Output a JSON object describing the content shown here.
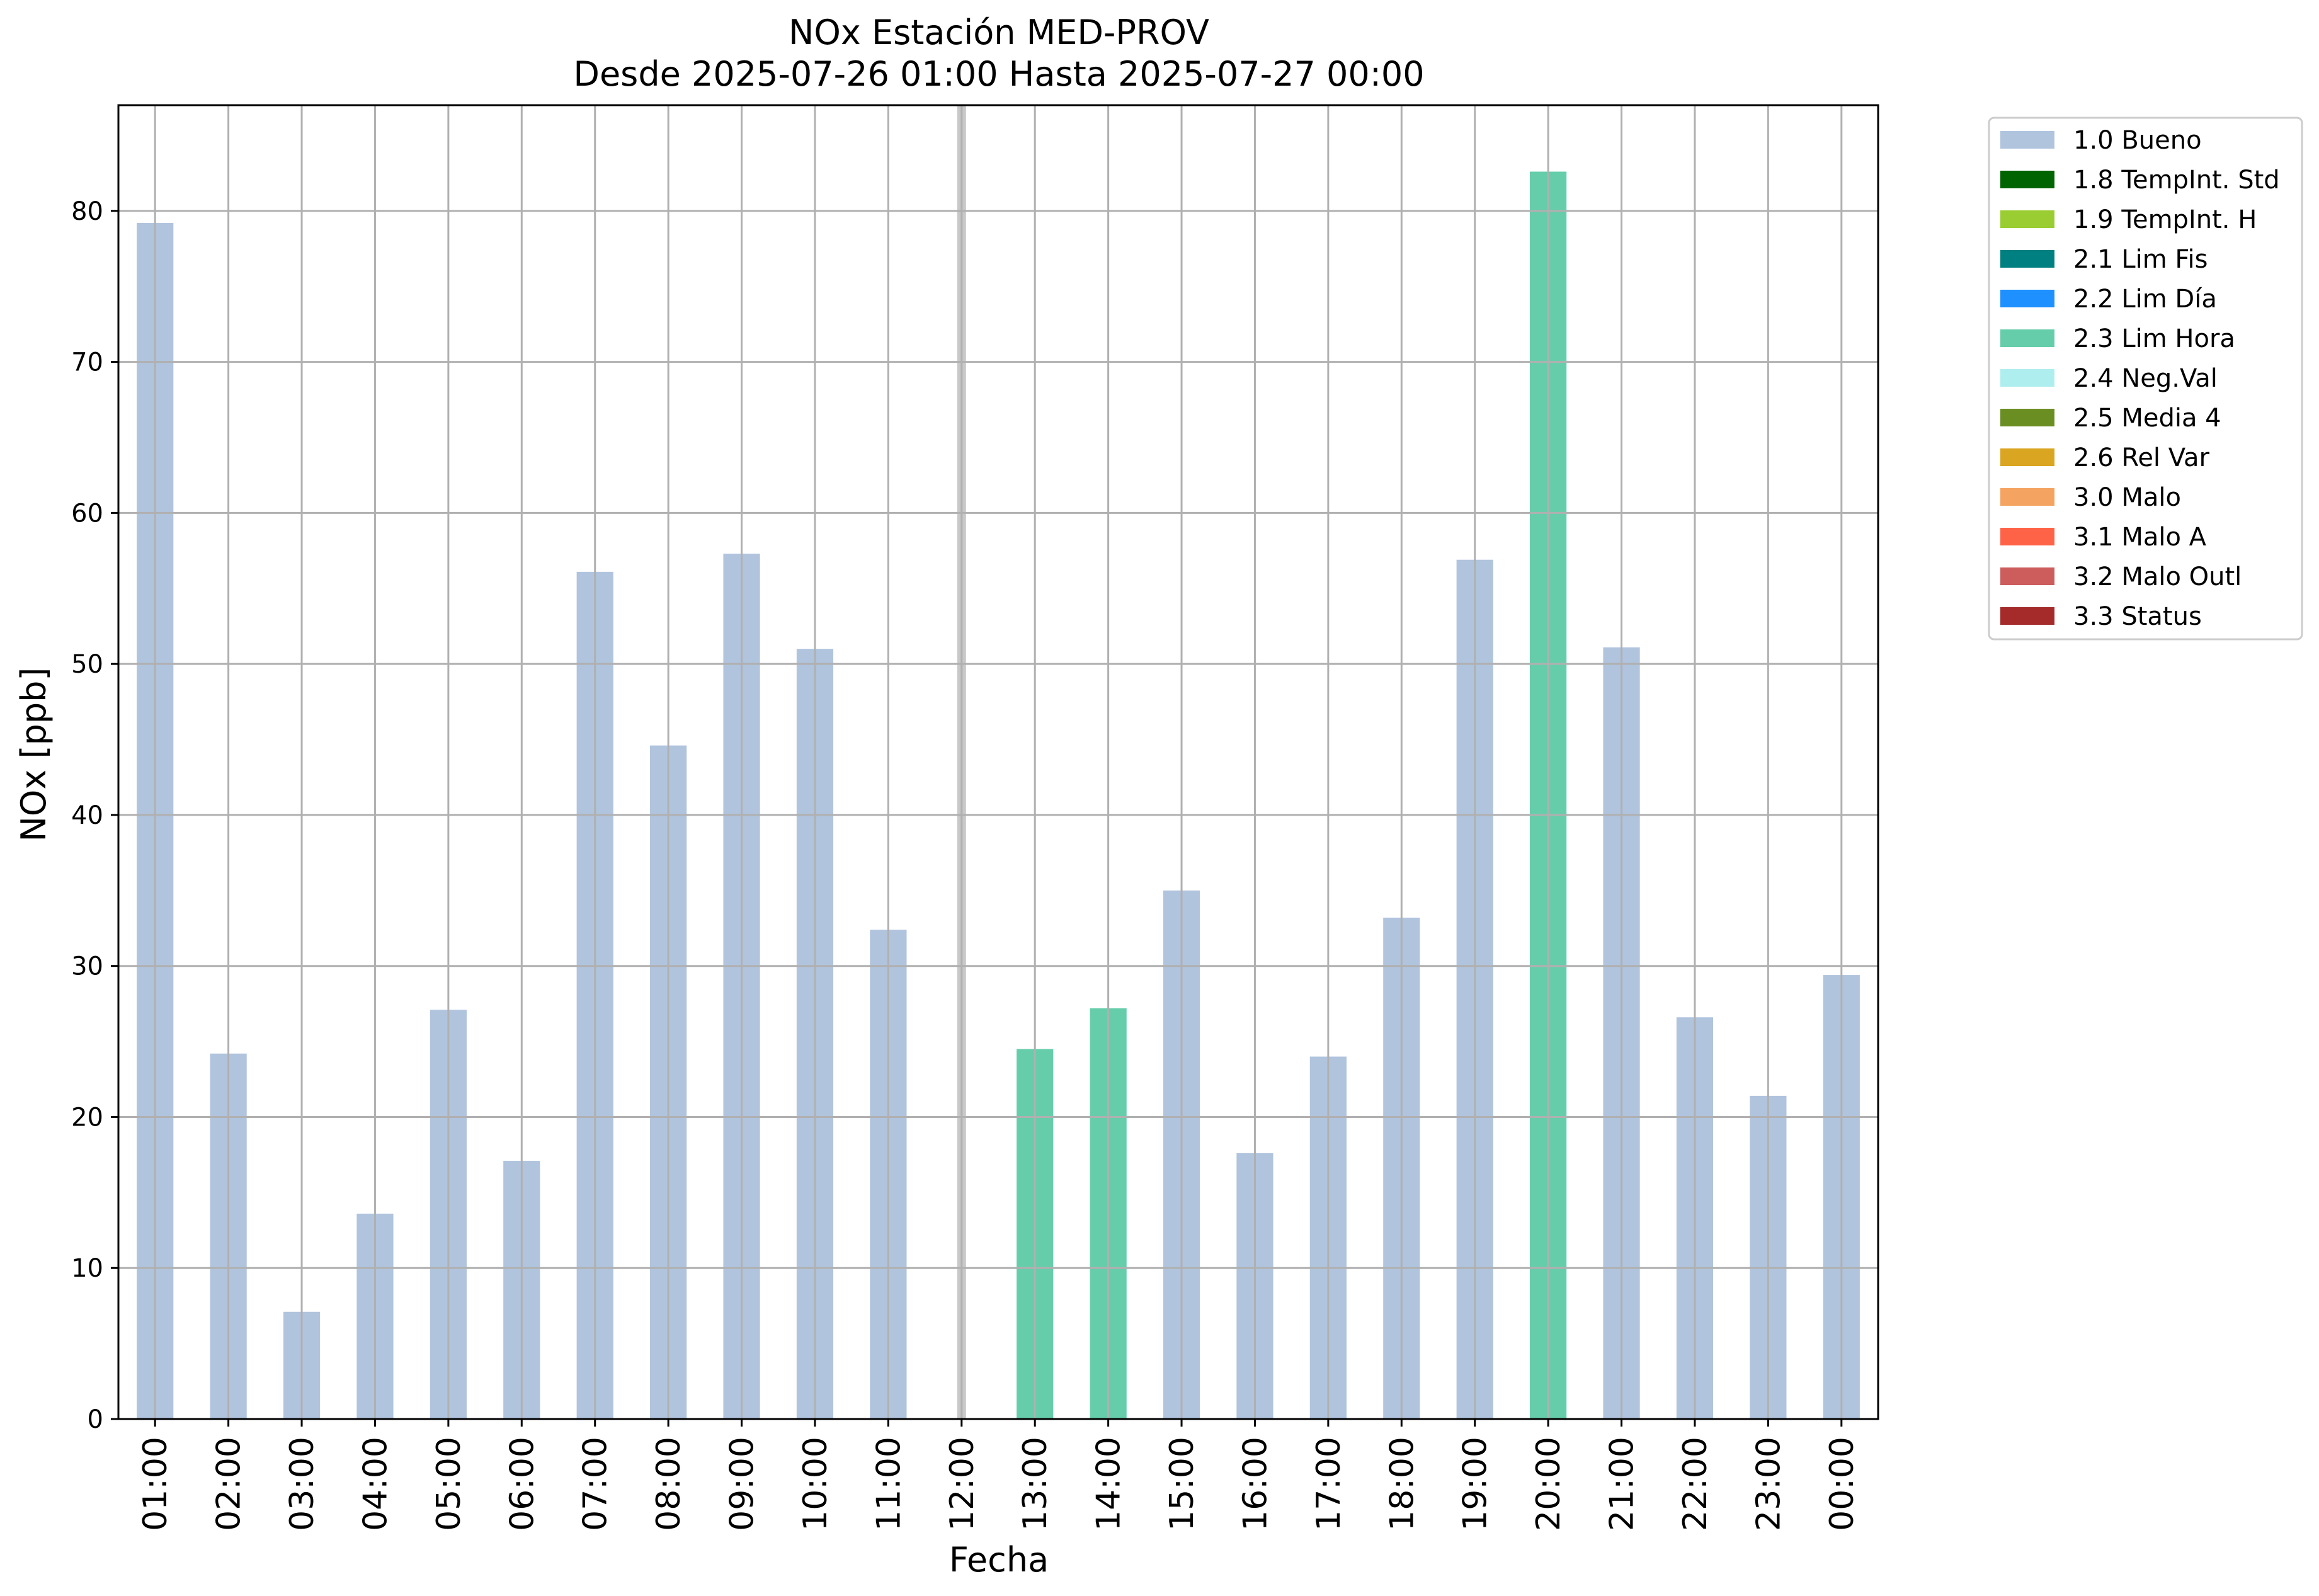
{
  "chart_data": {
    "type": "bar",
    "title": "NOx Estación MED-PROV",
    "subtitle": "Desde 2025-07-26 01:00 Hasta 2025-07-27 00:00",
    "xlabel": "Fecha",
    "ylabel": "NOx [ppb]",
    "ylim": [
      0,
      87
    ],
    "yticks": [
      0,
      10,
      20,
      30,
      40,
      50,
      60,
      70,
      80
    ],
    "grid": true,
    "legend_placement": "outside-upper-right",
    "categories": [
      "01:00",
      "02:00",
      "03:00",
      "04:00",
      "05:00",
      "06:00",
      "07:00",
      "08:00",
      "09:00",
      "10:00",
      "11:00",
      "12:00",
      "13:00",
      "14:00",
      "15:00",
      "16:00",
      "17:00",
      "18:00",
      "19:00",
      "20:00",
      "21:00",
      "22:00",
      "23:00",
      "00:00"
    ],
    "values": [
      79.2,
      24.2,
      7.1,
      13.6,
      27.1,
      17.1,
      56.1,
      44.6,
      57.3,
      51.0,
      32.4,
      null,
      24.5,
      27.2,
      35.0,
      17.6,
      24.0,
      33.2,
      56.9,
      82.6,
      51.1,
      26.6,
      21.4,
      29.4
    ],
    "flags": [
      "1.0 Bueno",
      "1.0 Bueno",
      "1.0 Bueno",
      "1.0 Bueno",
      "1.0 Bueno",
      "1.0 Bueno",
      "1.0 Bueno",
      "1.0 Bueno",
      "1.0 Bueno",
      "1.0 Bueno",
      "1.0 Bueno",
      null,
      "2.3 Lim Hora",
      "2.3 Lim Hora",
      "1.0 Bueno",
      "1.0 Bueno",
      "1.0 Bueno",
      "1.0 Bueno",
      "1.0 Bueno",
      "2.3 Lim Hora",
      "1.0 Bueno",
      "1.0 Bueno",
      "1.0 Bueno",
      "1.0 Bueno"
    ],
    "marker_category": "12:00",
    "marker_color": "#c8c8c8",
    "legend": [
      {
        "label": "1.0 Bueno",
        "color": "#b0c4de"
      },
      {
        "label": "1.8 TempInt. Std",
        "color": "#006400"
      },
      {
        "label": "1.9 TempInt. H",
        "color": "#9acd32"
      },
      {
        "label": "2.1 Lim Fis",
        "color": "#008080"
      },
      {
        "label": "2.2 Lim Día",
        "color": "#1e90ff"
      },
      {
        "label": "2.3 Lim Hora",
        "color": "#66cdaa"
      },
      {
        "label": "2.4 Neg.Val",
        "color": "#afeeee"
      },
      {
        "label": "2.5 Media 4",
        "color": "#6b8e23"
      },
      {
        "label": "2.6 Rel Var",
        "color": "#daa520"
      },
      {
        "label": "3.0 Malo",
        "color": "#f4a460"
      },
      {
        "label": "3.1 Malo A",
        "color": "#ff6347"
      },
      {
        "label": "3.2 Malo Outl",
        "color": "#cd5c5c"
      },
      {
        "label": "3.3 Status",
        "color": "#a52a2a"
      }
    ]
  }
}
